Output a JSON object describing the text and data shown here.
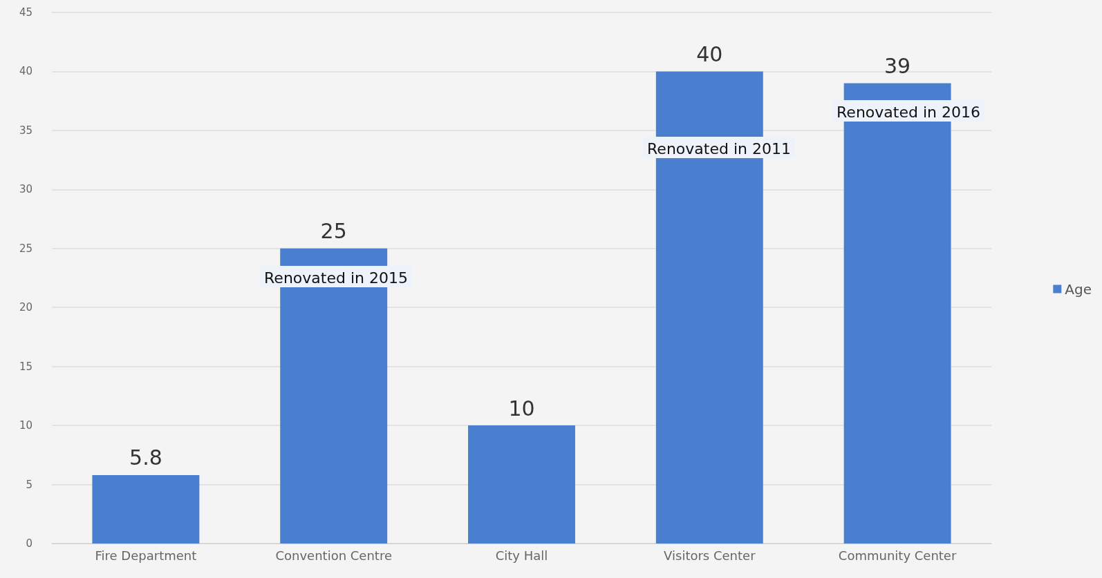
{
  "chart_data": {
    "type": "bar",
    "categories": [
      "Fire Department",
      "Convention Centre",
      "City Hall",
      "Visitors Center",
      "Community Center"
    ],
    "series": [
      {
        "name": "Age",
        "color": "#4a7fcf",
        "values": [
          5.8,
          25,
          10,
          40,
          39
        ]
      }
    ],
    "ylim": [
      0,
      45
    ],
    "yticks": [
      0,
      5,
      10,
      15,
      20,
      25,
      30,
      35,
      40,
      45
    ],
    "grid": "y",
    "legend": "right",
    "data_labels": true,
    "annotations": [
      "Renovated in 2015",
      "Renovated in 2011",
      "Renovated in 2016"
    ]
  }
}
